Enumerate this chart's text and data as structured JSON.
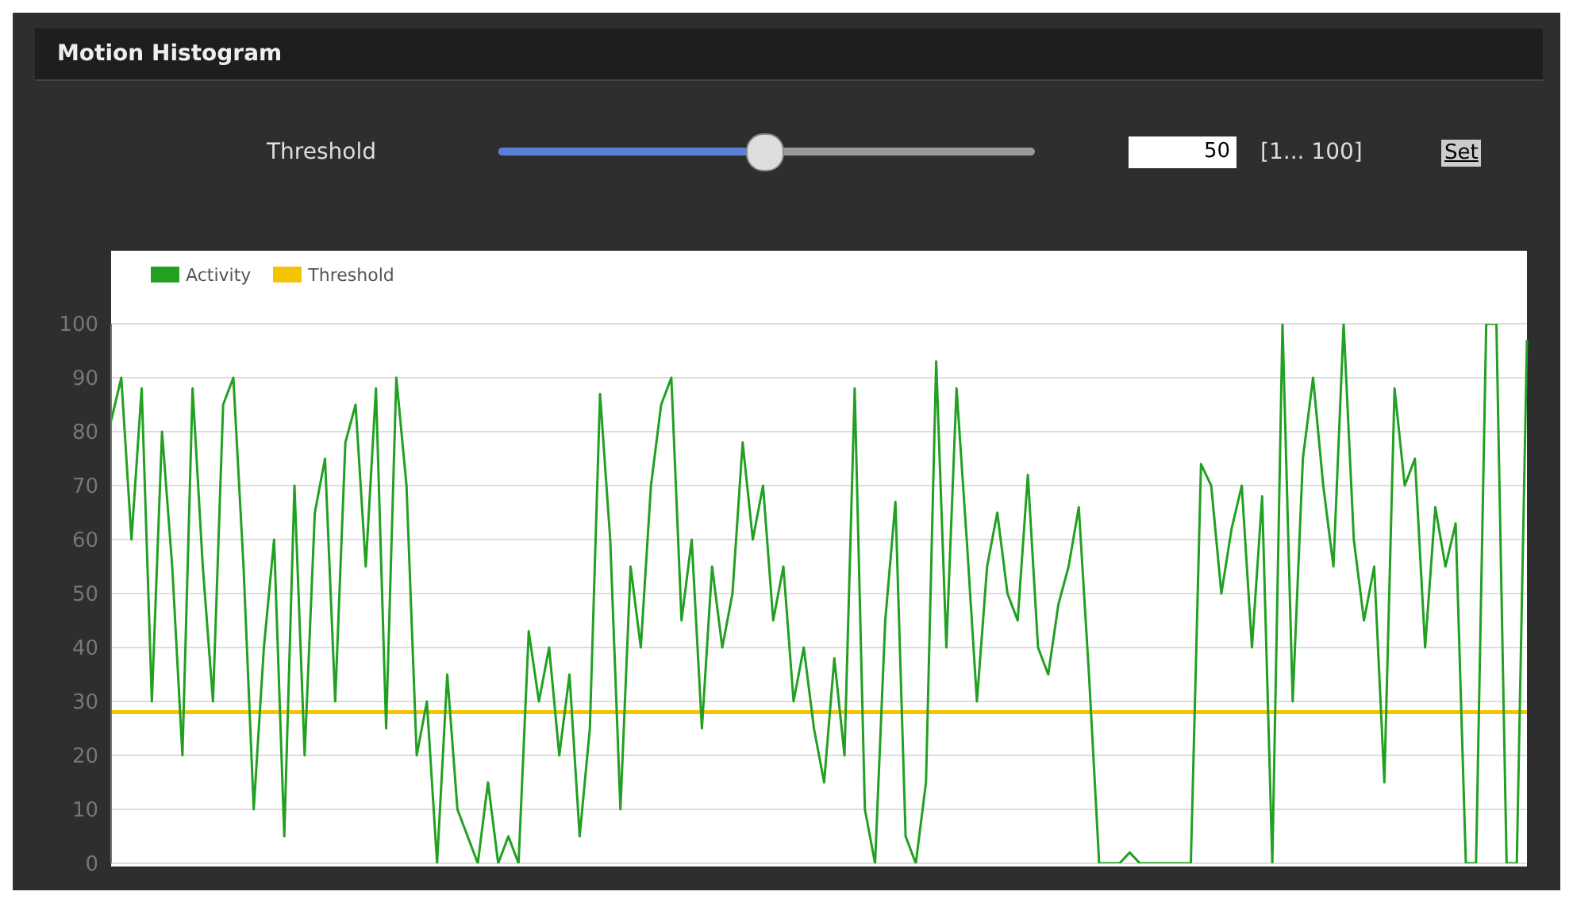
{
  "chart_data": {
    "type": "line",
    "title": "Motion Histogram",
    "categories": [
      null,
      null,
      null,
      null,
      null,
      null,
      null,
      null,
      null,
      null,
      null,
      null,
      null,
      null,
      null,
      null,
      null,
      null,
      null,
      null,
      null,
      null,
      null,
      null,
      null,
      null,
      null,
      null,
      null,
      null,
      null,
      null,
      null,
      null,
      null,
      null,
      null,
      null,
      null,
      null,
      null,
      null,
      null,
      null,
      null,
      null,
      null,
      null,
      null,
      null,
      null,
      null,
      null,
      null,
      null,
      null,
      null,
      null,
      null,
      null,
      null,
      null,
      null,
      null,
      null,
      null,
      null,
      null,
      null,
      null,
      null,
      null,
      null,
      null,
      null,
      null,
      null,
      null,
      null,
      null,
      null,
      null,
      null,
      null,
      null,
      null,
      null,
      null,
      null,
      null,
      null,
      null,
      null,
      null,
      null,
      null,
      null,
      null,
      null,
      null,
      null,
      null,
      null,
      null,
      null,
      null,
      null,
      null,
      null,
      null,
      null,
      null,
      null,
      null,
      null,
      null,
      null,
      null,
      null,
      null,
      null,
      null,
      null,
      null,
      null,
      null,
      null,
      null,
      null,
      null,
      null,
      null,
      null,
      null,
      null,
      null,
      null,
      null,
      null,
      null
    ],
    "series": [
      {
        "name": "Activity",
        "color": "#22a022",
        "values": [
          82,
          90,
          60,
          88,
          30,
          80,
          55,
          20,
          88,
          55,
          30,
          85,
          90,
          55,
          10,
          40,
          60,
          5,
          70,
          20,
          65,
          75,
          30,
          78,
          85,
          55,
          88,
          25,
          90,
          70,
          20,
          30,
          0,
          35,
          10,
          5,
          0,
          15,
          0,
          5,
          0,
          43,
          30,
          40,
          20,
          35,
          5,
          25,
          87,
          60,
          10,
          55,
          40,
          70,
          85,
          90,
          45,
          60,
          25,
          55,
          40,
          50,
          78,
          60,
          70,
          45,
          55,
          30,
          40,
          25,
          15,
          38,
          20,
          88,
          10,
          0,
          45,
          67,
          5,
          0,
          15,
          93,
          40,
          88,
          60,
          30,
          55,
          65,
          50,
          45,
          72,
          40,
          35,
          48,
          55,
          66,
          35,
          0,
          0,
          0,
          2,
          0,
          0,
          0,
          0,
          0,
          0,
          74,
          70,
          50,
          62,
          70,
          40,
          68,
          0,
          100,
          30,
          75,
          90,
          70,
          55,
          100,
          60,
          45,
          55,
          15,
          88,
          70,
          75,
          40,
          66,
          55,
          63,
          0,
          0,
          100,
          100,
          0,
          0,
          97
        ]
      }
    ],
    "ylim": [
      0,
      100
    ],
    "yticks": [
      0,
      10,
      20,
      30,
      40,
      50,
      60,
      70,
      80,
      90,
      100
    ],
    "grid": "y",
    "legend": "top left",
    "marker": "none",
    "ref_lines": [
      {
        "axis": "y",
        "value": 28,
        "label": "Threshold",
        "color": "#f5c400"
      }
    ],
    "annotations": [
      "Threshold",
      "50",
      "[1... 100]",
      "Set"
    ]
  }
}
